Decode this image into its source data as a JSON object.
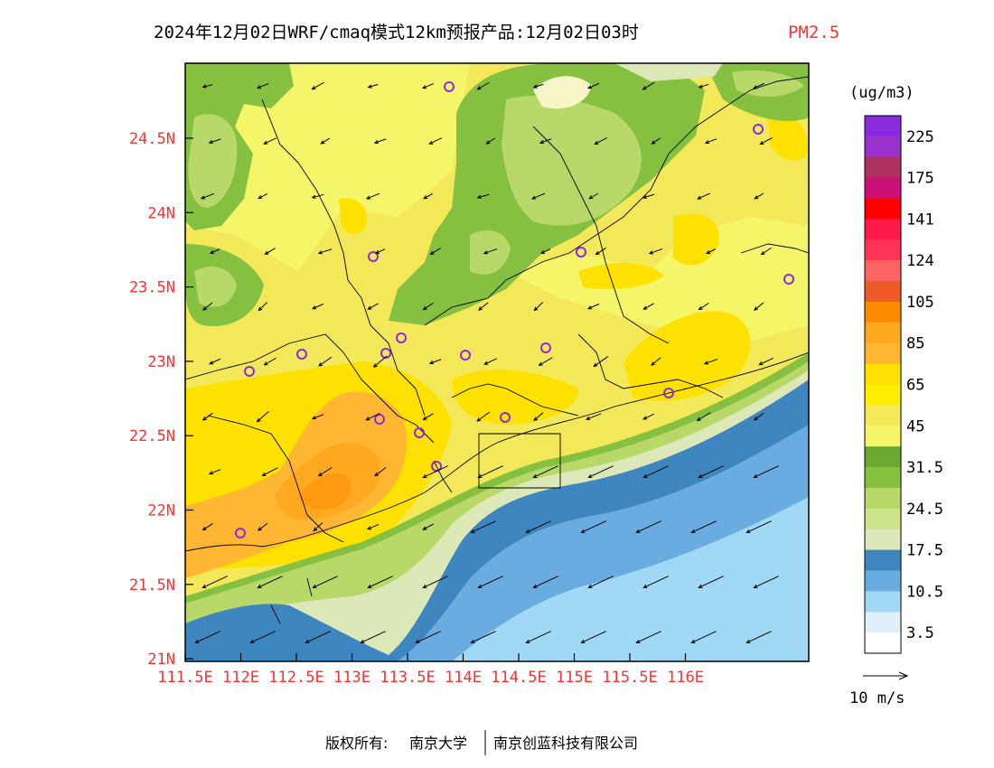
{
  "title": {
    "main": "2024年12月02日WRF/cmaq模式12km预报产品:12月02日03时",
    "variable": "PM2.5"
  },
  "axes": {
    "y_ticks": [
      "24.5N",
      "24N",
      "23.5N",
      "23N",
      "22.5N",
      "22N",
      "21.5N",
      "21N"
    ],
    "x_ticks": [
      "111.5E",
      "112E",
      "112.5E",
      "113E",
      "113.5E",
      "114E",
      "114.5E",
      "115E",
      "115.5E",
      "116E"
    ]
  },
  "colorbar": {
    "unit": "(ug/m3)",
    "labels": [
      "225",
      "175",
      "141",
      "124",
      "105",
      "85",
      "65",
      "45",
      "31.5",
      "24.5",
      "17.5",
      "10.5",
      "3.5"
    ],
    "colors": [
      "#8a2be2",
      "#9a32cd",
      "#b03060",
      "#cd1076",
      "#ff0000",
      "#ff1a4a",
      "#ff3355",
      "#ff6464",
      "#f05a28",
      "#ff8c00",
      "#ffa820",
      "#ffb733",
      "#ffe100",
      "#ffee00",
      "#f3e85a",
      "#f5f56a",
      "#6aa832",
      "#86c040",
      "#b8d86a",
      "#cde38a",
      "#dde8b8",
      "#3d86c0",
      "#6aace0",
      "#a0d8f5",
      "#dff0fa",
      "#ffffff"
    ]
  },
  "wind_scale": {
    "label": "10 m/s"
  },
  "footer": {
    "rights": "版权所有:",
    "org1": "南京大学",
    "org2": "南京创蓝科技有限公司"
  }
}
